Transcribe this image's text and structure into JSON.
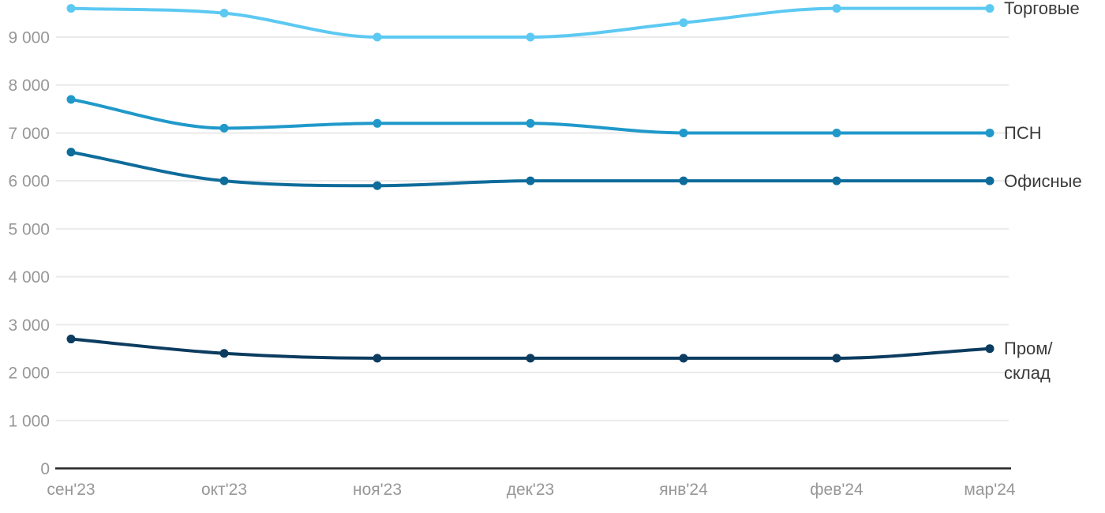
{
  "chart_data": {
    "type": "line",
    "title": "",
    "categories": [
      "сен'23",
      "окт'23",
      "ноя'23",
      "дек'23",
      "янв'24",
      "фев'24",
      "мар'24"
    ],
    "series": [
      {
        "name": "Торговые",
        "legend": "Торговые",
        "color": "#5cc9f2",
        "values": [
          9600,
          9500,
          9000,
          9000,
          9300,
          9600,
          9600
        ]
      },
      {
        "name": "ПСН",
        "legend": "ПСН",
        "color": "#2099ca",
        "values": [
          7700,
          7100,
          7200,
          7200,
          7000,
          7000,
          7000
        ]
      },
      {
        "name": "Офисные",
        "legend": "Офисные",
        "color": "#0e6c9b",
        "values": [
          6600,
          6000,
          5900,
          6000,
          6000,
          6000,
          6000
        ]
      },
      {
        "name": "Пром/склад",
        "legend": "Пром/\nсклад",
        "color": "#0c3c5f",
        "values": [
          2700,
          2400,
          2300,
          2300,
          2300,
          2300,
          2500
        ]
      }
    ],
    "y_ticks": [
      {
        "value": 0,
        "label": "0"
      },
      {
        "value": 1000,
        "label": "1 000"
      },
      {
        "value": 2000,
        "label": "2 000"
      },
      {
        "value": 3000,
        "label": "3 000"
      },
      {
        "value": 4000,
        "label": "4 000"
      },
      {
        "value": 5000,
        "label": "5 000"
      },
      {
        "value": 6000,
        "label": "6 000"
      },
      {
        "value": 7000,
        "label": "7 000"
      },
      {
        "value": 8000,
        "label": "8 000"
      },
      {
        "value": 9000,
        "label": "9 000"
      }
    ],
    "ylim": [
      0,
      9700
    ],
    "grid": "horizontal",
    "legend_position": "right-of-line-end"
  },
  "colors": {
    "background": "#ffffff",
    "gridline": "#eaeaea",
    "axis": "#262626",
    "tick_text": "#979797",
    "legend_text": "#3a3a3a"
  }
}
